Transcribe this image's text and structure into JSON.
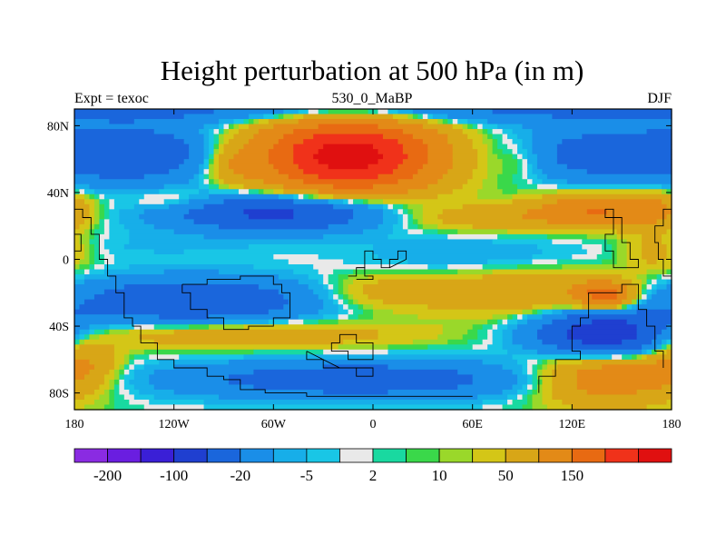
{
  "chart_data": {
    "type": "heatmap",
    "title": "Height perturbation at 500 hPa (in m)",
    "left_label": "Expt = texoc",
    "center_label": "530_0_MaBP",
    "right_label": "DJF",
    "x_ticks": [
      {
        "value": -180,
        "label": "180"
      },
      {
        "value": -120,
        "label": "120W"
      },
      {
        "value": -60,
        "label": "60W"
      },
      {
        "value": 0,
        "label": "0"
      },
      {
        "value": 60,
        "label": "60E"
      },
      {
        "value": 120,
        "label": "120E"
      },
      {
        "value": 180,
        "label": "180"
      }
    ],
    "y_ticks": [
      {
        "value": 80,
        "label": "80N"
      },
      {
        "value": 40,
        "label": "40N"
      },
      {
        "value": 0,
        "label": "0"
      },
      {
        "value": -40,
        "label": "40S"
      },
      {
        "value": -80,
        "label": "80S"
      }
    ],
    "xlim": [
      -180,
      180
    ],
    "ylim": [
      -90,
      90
    ],
    "colorbar": {
      "colors": [
        "#8a2be2",
        "#6a1ee0",
        "#3a1fd6",
        "#1f3fd0",
        "#1a66dc",
        "#1a8ee8",
        "#17aee9",
        "#19c6e6",
        "#e9e9e9",
        "#19d9a0",
        "#3ad84a",
        "#9ad82a",
        "#d4c617",
        "#d8a617",
        "#e38a17",
        "#e86a12",
        "#f0321a",
        "#e01010"
      ],
      "labels": [
        {
          "after_box": 1,
          "label": "-200"
        },
        {
          "after_box": 3,
          "label": "-100"
        },
        {
          "after_box": 5,
          "label": "-20"
        },
        {
          "after_box": 7,
          "label": "-5"
        },
        {
          "after_box": 9,
          "label": "2"
        },
        {
          "after_box": 11,
          "label": "10"
        },
        {
          "after_box": 13,
          "label": "50"
        },
        {
          "after_box": 15,
          "label": "150"
        }
      ]
    },
    "fields": [
      {
        "lon": 0,
        "lat": 90,
        "value": -55,
        "spread_lon": 600,
        "spread_lat": 6
      },
      {
        "lon": -140,
        "lat": 63,
        "value": -85,
        "spread_lon": 35,
        "spread_lat": 12
      },
      {
        "lon": 140,
        "lat": 63,
        "value": -75,
        "spread_lon": 40,
        "spread_lat": 12
      },
      {
        "lon": -15,
        "lat": 62,
        "value": 230,
        "spread_lon": 38,
        "spread_lat": 16
      },
      {
        "lon": -85,
        "lat": 57,
        "value": 35,
        "spread_lon": 12,
        "spread_lat": 9
      },
      {
        "lon": 90,
        "lat": 60,
        "value": 25,
        "spread_lon": 12,
        "spread_lat": 9
      },
      {
        "lon": -55,
        "lat": 28,
        "value": -120,
        "spread_lon": 48,
        "spread_lat": 8
      },
      {
        "lon": -120,
        "lat": 35,
        "value": 30,
        "spread_lon": 20,
        "spread_lat": 5
      },
      {
        "lon": 70,
        "lat": 25,
        "value": 40,
        "spread_lon": 45,
        "spread_lat": 6
      },
      {
        "lon": 135,
        "lat": 30,
        "value": 90,
        "spread_lon": 25,
        "spread_lat": 7
      },
      {
        "lon": 170,
        "lat": 30,
        "value": 40,
        "spread_lon": 15,
        "spread_lat": 8
      },
      {
        "lon": 60,
        "lat": 2,
        "value": -20,
        "spread_lon": 45,
        "spread_lat": 9
      },
      {
        "lon": -130,
        "lat": 8,
        "value": -10,
        "spread_lon": 50,
        "spread_lat": 6
      },
      {
        "lon": 170,
        "lat": 5,
        "value": 30,
        "spread_lon": 14,
        "spread_lat": 9
      },
      {
        "lon": -110,
        "lat": -25,
        "value": -95,
        "spread_lon": 55,
        "spread_lat": 10
      },
      {
        "lon": 0,
        "lat": -20,
        "value": 30,
        "spread_lon": 25,
        "spread_lat": 8
      },
      {
        "lon": 90,
        "lat": -20,
        "value": 50,
        "spread_lon": 45,
        "spread_lat": 10
      },
      {
        "lon": 140,
        "lat": -22,
        "value": 120,
        "spread_lon": 12,
        "spread_lat": 6
      },
      {
        "lon": -80,
        "lat": -45,
        "value": 45,
        "spread_lon": 70,
        "spread_lat": 6
      },
      {
        "lon": 140,
        "lat": -45,
        "value": -150,
        "spread_lon": 30,
        "spread_lat": 10
      },
      {
        "lon": -10,
        "lat": -72,
        "value": -80,
        "spread_lon": 80,
        "spread_lat": 8
      },
      {
        "lon": 140,
        "lat": -70,
        "value": 90,
        "spread_lon": 30,
        "spread_lat": 12
      },
      {
        "lon": -175,
        "lat": -60,
        "value": 50,
        "spread_lon": 15,
        "spread_lat": 12
      },
      {
        "lon": 0,
        "lat": 3,
        "value": -2,
        "spread_lon": 25,
        "spread_lat": 6
      }
    ],
    "coastlines": [
      [
        [
          -180,
          30
        ],
        [
          -175,
          30
        ],
        [
          -175,
          25
        ],
        [
          -170,
          25
        ],
        [
          -170,
          15
        ],
        [
          -165,
          15
        ],
        [
          -165,
          0
        ],
        [
          -160,
          0
        ],
        [
          -160,
          -10
        ],
        [
          -155,
          -10
        ],
        [
          -155,
          -20
        ],
        [
          -150,
          -20
        ],
        [
          -150,
          -35
        ],
        [
          -145,
          -35
        ],
        [
          -145,
          -40
        ],
        [
          -140,
          -40
        ],
        [
          -140,
          -50
        ],
        [
          -130,
          -50
        ],
        [
          -130,
          -60
        ],
        [
          -120,
          -60
        ],
        [
          -120,
          -65
        ],
        [
          -100,
          -65
        ],
        [
          -100,
          -70
        ],
        [
          -90,
          -70
        ],
        [
          -90,
          -72
        ],
        [
          -80,
          -72
        ],
        [
          -80,
          -78
        ],
        [
          -65,
          -78
        ],
        [
          -65,
          -80
        ],
        [
          -40,
          -80
        ],
        [
          -40,
          -82
        ],
        [
          60,
          -82
        ]
      ],
      [
        [
          -180,
          15
        ],
        [
          -176,
          15
        ],
        [
          -176,
          5
        ],
        [
          -180,
          5
        ]
      ],
      [
        [
          -115,
          -15
        ],
        [
          -100,
          -15
        ],
        [
          -100,
          -12
        ],
        [
          -80,
          -12
        ],
        [
          -80,
          -10
        ],
        [
          -60,
          -10
        ],
        [
          -60,
          -15
        ],
        [
          -55,
          -15
        ],
        [
          -55,
          -20
        ],
        [
          -50,
          -20
        ],
        [
          -50,
          -35
        ],
        [
          -60,
          -35
        ],
        [
          -60,
          -40
        ],
        [
          -75,
          -40
        ],
        [
          -75,
          -42
        ],
        [
          -90,
          -42
        ],
        [
          -90,
          -35
        ],
        [
          -100,
          -35
        ],
        [
          -100,
          -30
        ],
        [
          -110,
          -30
        ],
        [
          -110,
          -20
        ],
        [
          -115,
          -20
        ],
        [
          -115,
          -15
        ]
      ],
      [
        [
          -20,
          -45
        ],
        [
          -10,
          -45
        ],
        [
          -10,
          -50
        ],
        [
          0,
          -50
        ],
        [
          0,
          -55
        ],
        [
          0,
          -60
        ],
        [
          -15,
          -60
        ],
        [
          -15,
          -55
        ],
        [
          -25,
          -55
        ],
        [
          -25,
          -50
        ],
        [
          -20,
          -50
        ],
        [
          -20,
          -45
        ]
      ],
      [
        [
          -40,
          -55
        ],
        [
          -40,
          -60
        ],
        [
          -30,
          -60
        ],
        [
          -30,
          -65
        ],
        [
          -20,
          -65
        ],
        [
          -10,
          -65
        ],
        [
          -10,
          -70
        ],
        [
          0,
          -70
        ],
        [
          0,
          -65
        ],
        [
          -20,
          -65
        ],
        [
          -40,
          -55
        ]
      ],
      [
        [
          -15,
          -10
        ],
        [
          -10,
          -10
        ],
        [
          -10,
          -5
        ],
        [
          -5,
          -5
        ],
        [
          -5,
          5
        ],
        [
          0,
          5
        ],
        [
          0,
          0
        ],
        [
          5,
          0
        ],
        [
          5,
          -5
        ],
        [
          10,
          -5
        ],
        [
          10,
          0
        ],
        [
          15,
          0
        ],
        [
          15,
          5
        ],
        [
          20,
          5
        ],
        [
          20,
          0
        ],
        [
          10,
          -5
        ]
      ],
      [
        [
          -10,
          -5
        ],
        [
          -5,
          -5
        ],
        [
          -5,
          -10
        ],
        [
          0,
          -10
        ],
        [
          0,
          -12
        ],
        [
          -10,
          -12
        ]
      ],
      [
        [
          100,
          -80
        ],
        [
          100,
          -70
        ],
        [
          110,
          -70
        ],
        [
          110,
          -60
        ],
        [
          125,
          -60
        ],
        [
          125,
          -55
        ],
        [
          120,
          -55
        ],
        [
          120,
          -40
        ],
        [
          125,
          -40
        ],
        [
          125,
          -35
        ],
        [
          130,
          -35
        ],
        [
          130,
          -20
        ],
        [
          150,
          -20
        ],
        [
          150,
          -15
        ],
        [
          160,
          -15
        ],
        [
          160,
          -30
        ],
        [
          165,
          -30
        ],
        [
          165,
          -40
        ],
        [
          170,
          -40
        ],
        [
          170,
          -55
        ],
        [
          175,
          -55
        ],
        [
          175,
          -65
        ]
      ],
      [
        [
          140,
          30
        ],
        [
          145,
          30
        ],
        [
          145,
          25
        ],
        [
          150,
          25
        ],
        [
          150,
          10
        ],
        [
          155,
          10
        ],
        [
          155,
          0
        ],
        [
          160,
          0
        ],
        [
          160,
          -5
        ],
        [
          150,
          -5
        ],
        [
          145,
          -5
        ],
        [
          145,
          5
        ],
        [
          140,
          5
        ],
        [
          140,
          15
        ],
        [
          145,
          15
        ],
        [
          145,
          25
        ],
        [
          140,
          25
        ],
        [
          140,
          30
        ]
      ],
      [
        [
          180,
          30
        ],
        [
          175,
          30
        ],
        [
          175,
          20
        ],
        [
          170,
          20
        ],
        [
          170,
          10
        ],
        [
          172,
          10
        ],
        [
          172,
          0
        ],
        [
          175,
          0
        ],
        [
          175,
          -10
        ],
        [
          180,
          -10
        ]
      ]
    ]
  }
}
